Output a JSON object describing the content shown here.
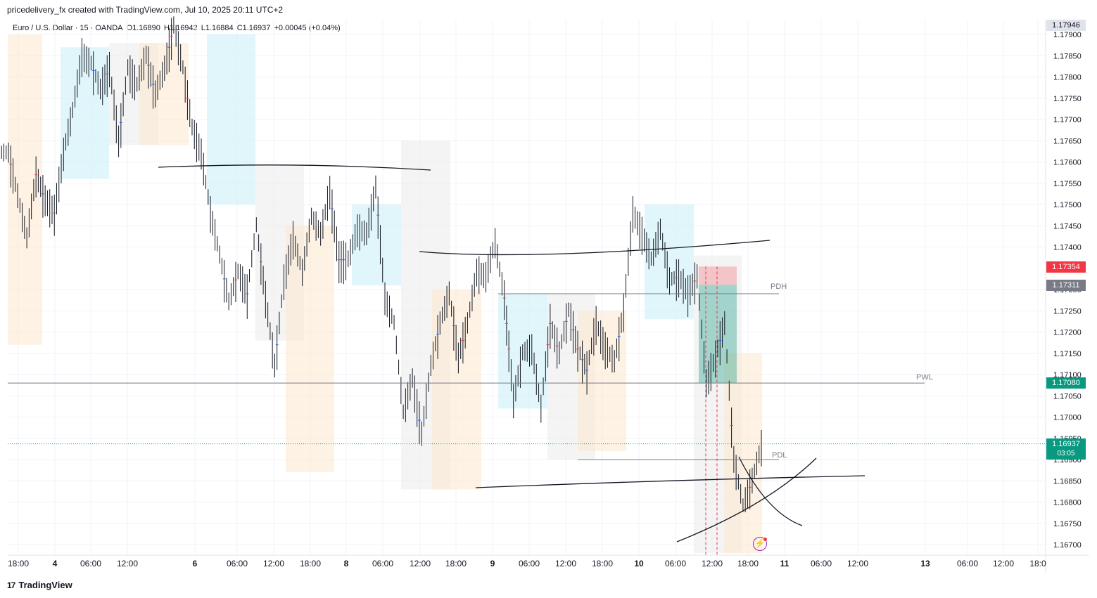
{
  "header": {
    "credit": "pricedelivery_fx created with TradingView.com, Jul 10, 2025 20:11 UTC+2"
  },
  "legend": {
    "symbol": "Euro / U.S. Dollar · 15 · OANDA",
    "open": "O1.16890",
    "high": "H1.16942",
    "low": "L1.16884",
    "close": "C1.16937",
    "change": "+0.00045 (+0.04%)"
  },
  "footer": {
    "logo_mark": "17",
    "brand": "TradingView"
  },
  "icons": {
    "bolt": "lightning-icon"
  },
  "colors": {
    "up": "#2962ff",
    "down": "#f23645",
    "candle": "#131722",
    "box_orange": "#fbe7cc",
    "box_blue": "#c8eef8",
    "box_gray": "#ebebeb",
    "green": "#089981",
    "red": "#f23645"
  },
  "chart_data": {
    "type": "candlestick",
    "symbol": "EURUSD",
    "timeframe": "15",
    "ylim": [
      1.1668,
      1.1795
    ],
    "y_ticks": [
      "1.17900",
      "1.17850",
      "1.17800",
      "1.17750",
      "1.17700",
      "1.17650",
      "1.17600",
      "1.17550",
      "1.17500",
      "1.17450",
      "1.17400",
      "1.17300",
      "1.17250",
      "1.17200",
      "1.17150",
      "1.17100",
      "1.17050",
      "1.17000",
      "1.16950",
      "1.16900",
      "1.16850",
      "1.16800",
      "1.16750",
      "1.16700"
    ],
    "x_ticks": [
      "18:00",
      "4",
      "06:00",
      "12:00",
      "6",
      "06:00",
      "12:00",
      "18:00",
      "8",
      "06:00",
      "12:00",
      "18:00",
      "9",
      "06:00",
      "12:00",
      "18:00",
      "10",
      "06:00",
      "12:00",
      "18:00",
      "11",
      "06:00",
      "12:00",
      "13",
      "06:00",
      "12:00",
      "18:0"
    ],
    "price_labels": {
      "top": "1.17946",
      "red": "1.17354",
      "gray": "1.17311",
      "pwl": "1.17080",
      "current": "1.16937",
      "countdown": "03:05"
    },
    "levels": [
      {
        "name": "PDH",
        "price": 1.1729
      },
      {
        "name": "PWL",
        "price": 1.1708
      },
      {
        "name": "PDL",
        "price": 1.169
      }
    ],
    "current_price": 1.16937,
    "price_path": [
      1.1762,
      1.1752,
      1.1742,
      1.1757,
      1.1751,
      1.1748,
      1.1762,
      1.1772,
      1.1785,
      1.1783,
      1.1777,
      1.1782,
      1.1765,
      1.1782,
      1.1778,
      1.1785,
      1.1776,
      1.1782,
      1.1792,
      1.1782,
      1.1768,
      1.1762,
      1.1748,
      1.1738,
      1.1727,
      1.1734,
      1.1729,
      1.1745,
      1.1728,
      1.1712,
      1.1732,
      1.1742,
      1.1734,
      1.1747,
      1.1743,
      1.1753,
      1.1737,
      1.1737,
      1.1744,
      1.1743,
      1.1754,
      1.1728,
      1.1722,
      1.1701,
      1.1709,
      1.1696,
      1.1712,
      1.1722,
      1.1729,
      1.1714,
      1.1722,
      1.1734,
      1.1733,
      1.1741,
      1.1728,
      1.1704,
      1.1715,
      1.1716,
      1.1702,
      1.1722,
      1.1715,
      1.1725,
      1.1716,
      1.1711,
      1.1722,
      1.1716,
      1.1713,
      1.1725,
      1.1748,
      1.1743,
      1.1737,
      1.1744,
      1.1732,
      1.1733,
      1.1729,
      1.1733,
      1.1708,
      1.1714,
      1.1722,
      1.169,
      1.1679,
      1.1685,
      1.1693
    ]
  }
}
